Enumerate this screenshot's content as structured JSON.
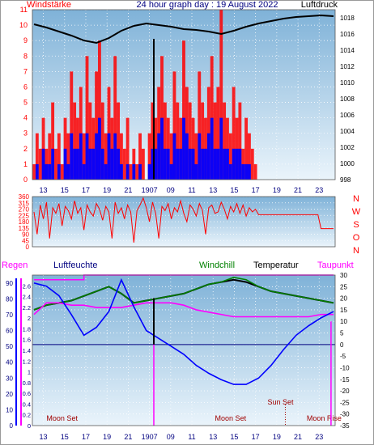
{
  "colors": {
    "red": "#ff0000",
    "darkred": "#a00000",
    "navy": "#000080",
    "blue": "#0000ff",
    "magenta": "#ff00ff",
    "green": "#008000",
    "black": "#000000",
    "plot_top": "#7fb2d8",
    "plot_bottom": "#eaf4fb"
  },
  "chart_data": [
    {
      "id": "wind-pressure",
      "type": "line",
      "title": "24 hour graph day : 19 August 2022",
      "left_label": "Windstärke",
      "right_label": "Luftdruck",
      "y_left": {
        "min": 0,
        "max": 11,
        "ticks": [
          0,
          1,
          2,
          3,
          4,
          5,
          6,
          7,
          8,
          9,
          10,
          11
        ]
      },
      "y_right": {
        "min": 998,
        "max": 1019,
        "ticks": [
          998,
          1000,
          1002,
          1004,
          1006,
          1008,
          1010,
          1012,
          1014,
          1016,
          1018
        ]
      },
      "x_ticks": [
        "13",
        "15",
        "17",
        "19",
        "21",
        "1907",
        "09",
        "11",
        "13",
        "15",
        "17",
        "19",
        "21",
        "23"
      ],
      "series": [
        {
          "role": "Gust",
          "color": "#ff0000",
          "axis": "left",
          "x": [
            0,
            0.5,
            1,
            1.5,
            2,
            2.5,
            3,
            3.5,
            4,
            4.5,
            5,
            5.5,
            6,
            6.5,
            7,
            7.5,
            8,
            8.5,
            9,
            9.5,
            10,
            10.5,
            11,
            11.5,
            12,
            12.5,
            13,
            13.5,
            14,
            14.5,
            15,
            15.5,
            16,
            16.5,
            17,
            17.5,
            18,
            18.5,
            19,
            19.5,
            20,
            20.5,
            21,
            21.5,
            22,
            22.5,
            23,
            23.5,
            24,
            24.5,
            25,
            25.5,
            26,
            26.5,
            27,
            27.5,
            28,
            28.5,
            29,
            29.5,
            30,
            30.5,
            31,
            31.5,
            32,
            32.5,
            33,
            33.5,
            34,
            34.5,
            35,
            35.5,
            36,
            36.5,
            37,
            37.5,
            38,
            38.5,
            39,
            39.5,
            40,
            40.5,
            41,
            41.5,
            42,
            42.5,
            43,
            43.5,
            44,
            44.5,
            45,
            45.5,
            46,
            46.5,
            47,
            47.5,
            48
          ],
          "values": [
            1,
            3,
            2,
            4,
            2,
            3,
            5,
            2,
            3,
            1,
            4,
            3,
            7,
            5,
            4,
            6,
            3,
            8,
            5,
            4,
            7,
            9,
            5,
            3,
            6,
            4,
            8,
            5,
            3,
            2,
            4,
            1,
            2,
            1,
            3,
            2,
            0,
            3,
            5,
            4,
            6,
            8,
            5,
            4,
            3,
            7,
            5,
            4,
            9,
            6,
            5,
            4,
            3,
            7,
            5,
            4,
            6,
            8,
            5,
            6,
            11,
            5,
            4,
            3,
            6,
            4,
            5,
            2,
            4,
            3,
            2,
            1,
            0,
            0,
            0,
            0,
            0,
            0,
            0,
            0,
            0,
            0,
            0,
            0,
            0,
            0,
            0,
            0,
            0,
            0,
            0,
            0,
            0,
            0,
            0,
            0,
            0
          ]
        },
        {
          "role": "Wind",
          "color": "#0000ff",
          "axis": "left",
          "x": [
            0,
            0.5,
            1,
            1.5,
            2,
            2.5,
            3,
            3.5,
            4,
            4.5,
            5,
            5.5,
            6,
            6.5,
            7,
            7.5,
            8,
            8.5,
            9,
            9.5,
            10,
            10.5,
            11,
            11.5,
            12,
            12.5,
            13,
            13.5,
            14,
            14.5,
            15,
            15.5,
            16,
            16.5,
            17,
            17.5,
            18,
            18.5,
            19,
            19.5,
            20,
            20.5,
            21,
            21.5,
            22,
            22.5,
            23,
            23.5,
            24,
            24.5,
            25,
            25.5,
            26,
            26.5,
            27,
            27.5,
            28,
            28.5,
            29,
            29.5,
            30,
            30.5,
            31,
            31.5,
            32,
            32.5,
            33,
            33.5,
            34,
            34.5,
            35,
            35.5,
            36,
            36.5,
            37,
            37.5,
            38,
            38.5,
            39,
            39.5,
            40,
            40.5,
            41,
            41.5,
            42,
            42.5,
            43,
            43.5,
            44,
            44.5,
            45,
            45.5,
            46,
            46.5,
            47,
            47.5,
            48
          ],
          "values": [
            0,
            1,
            0,
            2,
            1,
            1,
            2,
            0,
            1,
            0,
            2,
            1,
            3,
            2,
            2,
            3,
            1,
            3,
            2,
            2,
            3,
            4,
            2,
            1,
            3,
            2,
            3,
            2,
            1,
            0,
            1,
            0,
            1,
            0,
            1,
            0,
            0,
            1,
            2,
            2,
            3,
            4,
            2,
            2,
            1,
            3,
            2,
            2,
            4,
            3,
            2,
            2,
            1,
            3,
            2,
            2,
            3,
            4,
            2,
            2,
            4,
            2,
            2,
            1,
            2,
            2,
            2,
            1,
            1,
            1,
            0,
            0,
            0,
            0,
            0,
            0,
            0,
            0,
            0,
            0,
            0,
            0,
            0,
            0,
            0,
            0,
            0,
            0,
            0,
            0,
            0,
            0,
            0,
            0,
            0,
            0,
            0
          ]
        },
        {
          "role": "Pressure",
          "color": "#000000",
          "axis": "right",
          "x": [
            0,
            2,
            4,
            6,
            8,
            10,
            12,
            14,
            16,
            18,
            20,
            22,
            24,
            26,
            28,
            30,
            32,
            34,
            36,
            38,
            40,
            42,
            44,
            46,
            48
          ],
          "values": [
            1017.2,
            1016.8,
            1016.3,
            1015.8,
            1015.2,
            1014.9,
            1015.5,
            1016.4,
            1017.0,
            1017.3,
            1017.1,
            1016.9,
            1016.6,
            1016.5,
            1016.3,
            1016.0,
            1016.4,
            1016.9,
            1017.3,
            1017.6,
            1017.9,
            1018.1,
            1018.2,
            1018.3,
            1018.2
          ]
        }
      ]
    },
    {
      "id": "wind-direction",
      "type": "line",
      "y_left": {
        "min": 0,
        "max": 360,
        "ticks": [
          0,
          45,
          90,
          135,
          180,
          225,
          270,
          315,
          360
        ]
      },
      "compass": [
        "N",
        "W",
        "S",
        "O",
        "N"
      ],
      "x_ticks": [],
      "series": [
        {
          "role": "Direction",
          "color": "#ff0000",
          "x": [
            0,
            0.5,
            1,
            1.5,
            2,
            2.5,
            3,
            3.5,
            4,
            4.5,
            5,
            5.5,
            6,
            6.5,
            7,
            7.5,
            8,
            8.5,
            9,
            9.5,
            10,
            10.5,
            11,
            11.5,
            12,
            12.5,
            13,
            13.5,
            14,
            14.5,
            15,
            15.5,
            16,
            16.5,
            17,
            17.5,
            18,
            18.5,
            19,
            19.5,
            20,
            20.5,
            21,
            21.5,
            22,
            22.5,
            23,
            23.5,
            24,
            24.5,
            25,
            25.5,
            26,
            26.5,
            27,
            27.5,
            28,
            28.5,
            29,
            29.5,
            30,
            30.5,
            31,
            31.5,
            32,
            32.5,
            33,
            33.5,
            34,
            34.5,
            35,
            35.5,
            36,
            36.5,
            37,
            37.5,
            38,
            38.5,
            39,
            39.5,
            40,
            40.5,
            41,
            41.5,
            42,
            42.5,
            43,
            43.5,
            44,
            44.5,
            45,
            45.5,
            46,
            46.5,
            47,
            47.5,
            48
          ],
          "values": [
            250,
            90,
            300,
            200,
            320,
            60,
            280,
            240,
            310,
            150,
            290,
            260,
            200,
            330,
            240,
            280,
            120,
            300,
            250,
            220,
            310,
            270,
            190,
            290,
            250,
            60,
            320,
            240,
            280,
            200,
            300,
            250,
            30,
            260,
            300,
            350,
            280,
            180,
            320,
            240,
            60,
            290,
            260,
            310,
            200,
            280,
            250,
            330,
            240,
            180,
            300,
            270,
            220,
            310,
            260,
            90,
            280,
            300,
            240,
            250,
            320,
            270,
            200,
            290,
            250,
            310,
            240,
            300,
            220,
            280,
            250,
            270,
            230,
            230,
            230,
            230,
            230,
            230,
            230,
            230,
            230,
            230,
            230,
            230,
            230,
            230,
            230,
            230,
            230,
            230,
            230,
            230,
            130,
            130,
            130,
            130,
            130
          ]
        }
      ]
    },
    {
      "id": "temperature-humidity",
      "type": "line",
      "labels": {
        "rain": "Regen",
        "humidity": "Luftfeuchte",
        "windchill": "Windchill",
        "temperature": "Temperatur",
        "dewpoint": "Taupunkt"
      },
      "y_left_humidity": {
        "min": 0,
        "max": 95,
        "ticks": [
          0,
          10,
          20,
          30,
          40,
          50,
          60,
          70,
          80,
          90
        ]
      },
      "y_left_rain": {
        "min": 0,
        "max": 2.8,
        "ticks": [
          0,
          0.2,
          0.4,
          0.6,
          0.8,
          1,
          1.2,
          1.4,
          1.6,
          1.8,
          2,
          2.2,
          2.4,
          2.6
        ]
      },
      "y_right": {
        "min": -35,
        "max": 30,
        "ticks": [
          -35,
          -30,
          -25,
          -20,
          -15,
          -10,
          -5,
          0,
          5,
          10,
          15,
          20,
          25,
          30
        ]
      },
      "x_ticks": [
        "13",
        "15",
        "17",
        "19",
        "21",
        "1907",
        "09",
        "11",
        "13",
        "15",
        "17",
        "19",
        "21",
        "23"
      ],
      "annotations": [
        {
          "text": "Moon Set",
          "x": 4.5
        },
        {
          "text": "Moon Set",
          "x": 31.5
        },
        {
          "text": "Sun Set",
          "x": 39.5
        },
        {
          "text": "Moon Rise",
          "x": 46.5
        }
      ],
      "series": [
        {
          "role": "Temperature",
          "color": "#000000",
          "axis": "right",
          "x": [
            0,
            2,
            4,
            6,
            8,
            10,
            12,
            14,
            16,
            18,
            20,
            22,
            24,
            26,
            28,
            30,
            32,
            34,
            36,
            38,
            40,
            42,
            44,
            46,
            48
          ],
          "values": [
            15,
            17,
            18,
            19,
            21,
            23,
            25,
            22,
            18,
            19,
            20,
            21,
            22,
            24,
            26,
            27,
            28,
            27,
            25,
            23,
            22,
            21,
            20,
            19,
            18
          ]
        },
        {
          "role": "Windchill",
          "color": "#008000",
          "axis": "right",
          "x": [
            0,
            2,
            4,
            6,
            8,
            10,
            12,
            14,
            16,
            18,
            20,
            22,
            24,
            26,
            28,
            30,
            32,
            34,
            36,
            38,
            40,
            42,
            44,
            46,
            48
          ],
          "values": [
            15,
            17,
            18,
            19,
            21,
            23,
            25,
            22,
            18,
            19,
            20,
            21,
            22,
            24,
            26,
            27,
            29,
            28,
            25,
            23,
            22,
            21,
            20,
            19,
            18
          ]
        },
        {
          "role": "Dewpoint",
          "color": "#ff00ff",
          "axis": "right",
          "x": [
            0,
            2,
            4,
            6,
            8,
            10,
            12,
            14,
            16,
            18,
            20,
            22,
            24,
            26,
            28,
            30,
            32,
            34,
            36,
            38,
            40,
            42,
            44,
            46,
            48
          ],
          "values": [
            13,
            18,
            18,
            17,
            17,
            16,
            16,
            16,
            17,
            18,
            18,
            18,
            17,
            15,
            14,
            13,
            12,
            12,
            12,
            12,
            12,
            12,
            12,
            13,
            13
          ]
        },
        {
          "role": "Humidity",
          "color": "#0000ff",
          "axis": "left",
          "x": [
            0,
            2,
            4,
            6,
            8,
            10,
            12,
            14,
            16,
            18,
            20,
            22,
            24,
            26,
            28,
            30,
            32,
            34,
            36,
            38,
            40,
            42,
            44,
            46,
            48
          ],
          "values": [
            90,
            88,
            82,
            70,
            57,
            62,
            72,
            92,
            75,
            60,
            55,
            50,
            45,
            38,
            33,
            29,
            26,
            26,
            30,
            38,
            48,
            57,
            63,
            68,
            72
          ]
        }
      ]
    }
  ]
}
